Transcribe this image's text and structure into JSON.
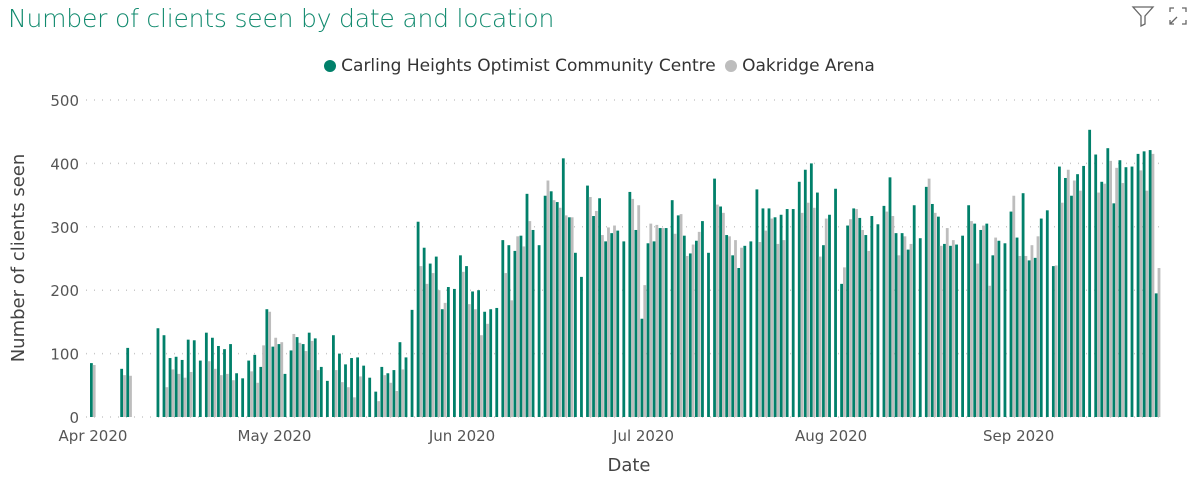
{
  "visual": {
    "title": "Number of clients seen by date and location",
    "icons": [
      "filter-icon",
      "focus-mode-icon"
    ]
  },
  "chart_data": {
    "type": "bar",
    "title": "Number of clients seen by date and location",
    "xlabel": "Date",
    "ylabel": "Number of clients seen",
    "ylim": [
      0,
      500
    ],
    "yticks": [
      "0",
      "100",
      "200",
      "300",
      "400",
      "500"
    ],
    "xticks": [
      {
        "label": "Apr 2020",
        "date": "2020-04-01"
      },
      {
        "label": "May 2020",
        "date": "2020-05-01"
      },
      {
        "label": "Jun 2020",
        "date": "2020-06-01"
      },
      {
        "label": "Jul 2020",
        "date": "2020-07-01"
      },
      {
        "label": "Aug 2020",
        "date": "2020-08-01"
      },
      {
        "label": "Sep 2020",
        "date": "2020-09-01"
      }
    ],
    "grid": "horizontal dotted",
    "legend_position": "top-center",
    "colors": {
      "Carling Heights Optimist Community Centre": "#01806a",
      "Oakridge Arena": "#bdbdbd"
    },
    "segments": [
      {
        "start": "2020-04-01",
        "green": [
          85
        ],
        "grey": [
          82
        ]
      },
      {
        "start": "2020-04-06",
        "green": [
          76,
          109
        ],
        "grey": [
          66,
          65
        ]
      },
      {
        "start": "2020-04-12",
        "green": [
          140,
          129,
          93,
          95,
          90,
          122,
          121,
          89,
          133,
          125,
          112,
          107,
          115,
          69,
          61,
          89,
          98,
          79,
          170,
          111,
          115,
          68,
          105,
          126,
          115,
          133,
          124,
          79,
          57,
          129,
          100,
          83,
          93,
          94,
          81,
          62,
          40,
          79,
          69,
          74,
          118,
          94,
          169,
          308,
          267,
          242,
          253,
          170,
          205,
          202,
          255,
          238,
          198,
          200,
          166,
          170,
          172,
          279,
          271,
          262,
          286,
          352,
          295,
          271,
          349,
          356,
          339,
          408,
          315,
          259,
          221,
          365,
          317,
          345,
          277,
          290,
          294,
          277,
          355,
          295,
          155,
          274,
          277,
          298,
          298,
          342,
          318,
          286,
          258,
          278,
          309,
          259,
          376,
          332,
          287,
          255,
          235,
          270,
          277,
          359,
          329,
          329,
          315,
          319,
          328,
          328,
          371,
          390,
          400,
          354,
          271,
          319,
          360,
          210,
          302,
          329,
          314,
          287,
          317,
          304,
          333,
          378,
          290,
          290,
          264,
          334,
          282,
          363,
          336,
          316,
          273,
          270,
          272,
          286,
          334,
          305,
          295,
          305,
          255,
          278,
          274,
          324,
          283,
          353,
          247,
          251,
          313,
          326,
          238,
          395,
          377,
          349,
          383,
          396,
          453,
          414,
          371,
          424,
          337,
          405,
          394,
          395,
          415,
          419,
          421,
          195
        ],
        "grey": [
          0,
          47,
          75,
          68,
          62,
          71,
          0,
          0,
          88,
          76,
          66,
          68,
          58,
          0,
          0,
          72,
          54,
          113,
          166,
          125,
          118,
          0,
          131,
          117,
          104,
          120,
          74,
          0,
          0,
          74,
          55,
          47,
          31,
          64,
          0,
          0,
          25,
          66,
          54,
          41,
          75,
          0,
          0,
          238,
          210,
          227,
          200,
          180,
          0,
          0,
          229,
          178,
          170,
          129,
          147,
          0,
          0,
          227,
          184,
          285,
          269,
          309,
          0,
          0,
          373,
          342,
          330,
          318,
          315,
          0,
          0,
          347,
          325,
          287,
          299,
          302,
          0,
          0,
          344,
          334,
          208,
          305,
          303,
          298,
          0,
          289,
          320,
          254,
          272,
          292,
          0,
          0,
          335,
          322,
          285,
          279,
          267,
          0,
          0,
          276,
          294,
          313,
          273,
          279,
          0,
          0,
          322,
          338,
          330,
          253,
          313,
          0,
          0,
          236,
          312,
          328,
          295,
          262,
          0,
          0,
          324,
          317,
          255,
          285,
          273,
          0,
          0,
          376,
          322,
          270,
          298,
          279,
          0,
          0,
          309,
          242,
          302,
          207,
          283,
          0,
          0,
          349,
          254,
          254,
          271,
          285,
          0,
          0,
          239,
          338,
          390,
          373,
          357,
          0,
          0,
          354,
          368,
          404,
          393,
          369,
          0,
          0,
          389,
          357,
          415,
          235
        ]
      }
    ],
    "series": [
      {
        "name": "Carling Heights Optimist Community Centre",
        "key": "green"
      },
      {
        "name": "Oakridge Arena",
        "key": "grey"
      }
    ]
  }
}
